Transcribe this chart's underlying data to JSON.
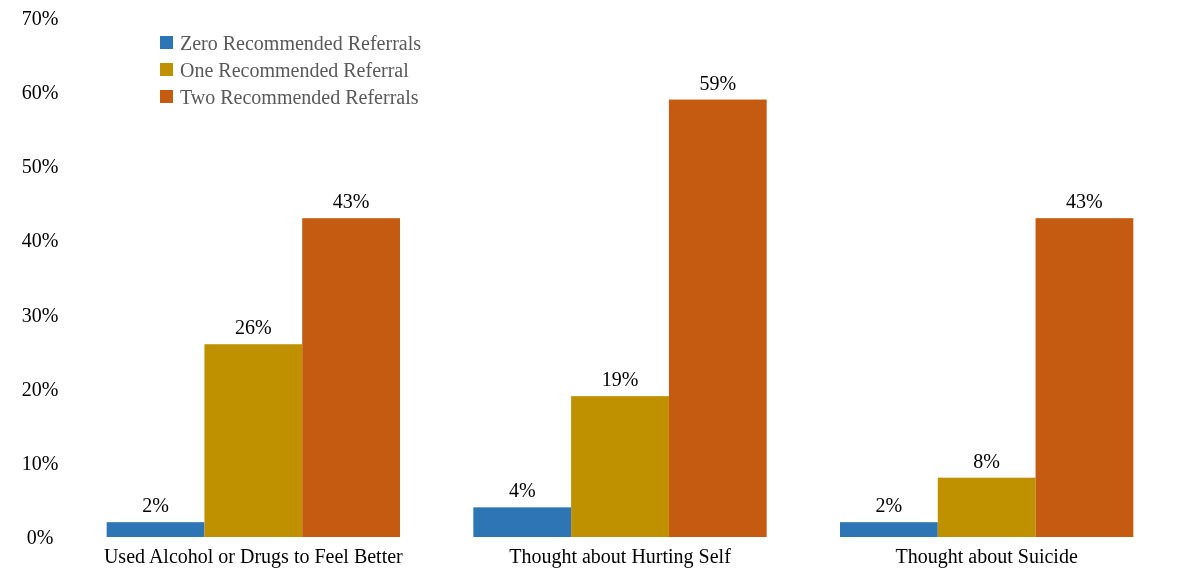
{
  "chart_data": {
    "type": "bar",
    "categories": [
      "Used Alcohol or Drugs to Feel Better",
      "Thought about Hurting Self",
      "Thought about Suicide"
    ],
    "series": [
      {
        "name": "Zero Recommended Referrals",
        "color": "#2e75b6",
        "values": [
          2,
          4,
          2
        ],
        "value_labels": [
          "2%",
          "4%",
          "2%"
        ]
      },
      {
        "name": "One Recommended Referral",
        "color": "#bf9000",
        "values": [
          26,
          19,
          8
        ],
        "value_labels": [
          "26%",
          "19%",
          "8%"
        ]
      },
      {
        "name": "Two Recommended Referrals",
        "color": "#c55a11",
        "values": [
          43,
          59,
          43
        ],
        "value_labels": [
          "43%",
          "59%",
          "43%"
        ]
      }
    ],
    "ylim": [
      0,
      70
    ],
    "yticks": [
      {
        "value": 0,
        "label": "0%"
      },
      {
        "value": 10,
        "label": "10%"
      },
      {
        "value": 20,
        "label": "20%"
      },
      {
        "value": 30,
        "label": "30%"
      },
      {
        "value": 40,
        "label": "40%"
      },
      {
        "value": 50,
        "label": "50%"
      },
      {
        "value": 60,
        "label": "60%"
      },
      {
        "value": 70,
        "label": "70%"
      }
    ],
    "grid": false,
    "legend": "top left"
  }
}
